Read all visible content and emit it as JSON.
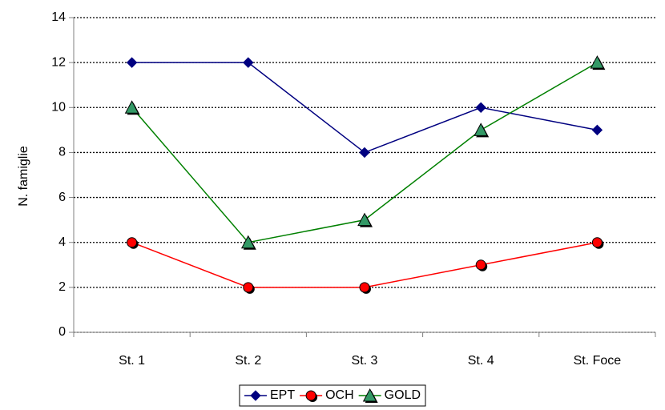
{
  "chart_data": {
    "type": "line",
    "y_label": "N. famiglie",
    "categories": [
      "St. 1",
      "St. 2",
      "St. 3",
      "St. 4",
      "St. Foce"
    ],
    "series": [
      {
        "name": "EPT",
        "color": "#000080",
        "marker": "diamond",
        "marker_color": "#000080",
        "values": [
          12,
          12,
          8,
          10,
          9
        ]
      },
      {
        "name": "OCH",
        "color": "#ff0000",
        "marker": "circle",
        "marker_color": "#ff0000",
        "values": [
          4,
          2,
          2,
          3,
          4
        ]
      },
      {
        "name": "GOLD",
        "color": "#008000",
        "marker": "triangle",
        "marker_color": "#339966",
        "values": [
          10,
          4,
          5,
          9,
          12
        ]
      }
    ],
    "ylim": [
      0,
      14
    ],
    "yticks": [
      0,
      2,
      4,
      6,
      8,
      10,
      12,
      14
    ],
    "grid": true,
    "legend": "bottom"
  }
}
